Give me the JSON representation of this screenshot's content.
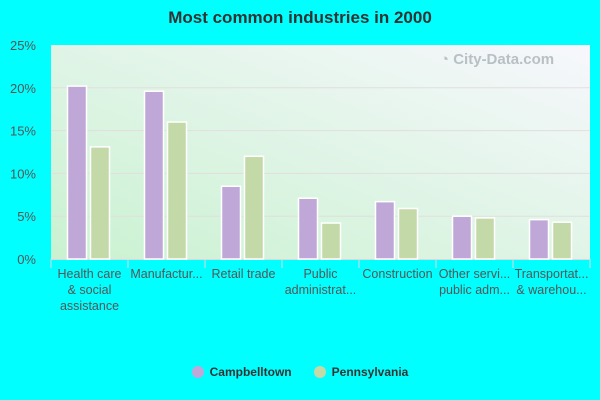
{
  "chart_data": {
    "type": "bar",
    "title": "Most common industries in 2000",
    "categories": [
      [
        "Health care",
        "& social",
        "assistance"
      ],
      [
        "Manufactur..."
      ],
      [
        "Retail trade"
      ],
      [
        "Public",
        "administrat..."
      ],
      [
        "Construction"
      ],
      [
        "Other servi...",
        "public adm..."
      ],
      [
        "Transportat...",
        "& warehou..."
      ]
    ],
    "series": [
      {
        "name": "Campbelltown",
        "color": "#bfa8d8",
        "values": [
          20.2,
          19.6,
          8.5,
          7.1,
          6.7,
          5.0,
          4.6
        ]
      },
      {
        "name": "Pennsylvania",
        "color": "#c4d9a8",
        "values": [
          13.1,
          16.0,
          12.0,
          4.2,
          5.9,
          4.8,
          4.3
        ]
      }
    ],
    "ylim": [
      0,
      25
    ],
    "yticks": [
      "0%",
      "5%",
      "10%",
      "15%",
      "20%",
      "25%"
    ],
    "grid": true,
    "legend": "bottom",
    "watermark": "City-Data.com"
  }
}
